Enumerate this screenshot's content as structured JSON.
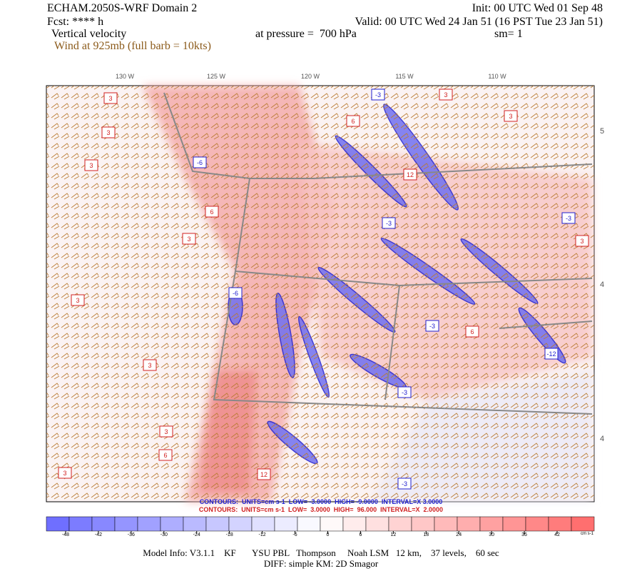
{
  "header": {
    "title": "ECHAM.2050S-WRF Domain 2",
    "init": "Init: 00 UTC Wed 01 Sep 48",
    "forecast": "Fcst: **** h",
    "valid": "Valid: 00 UTC Wed 24 Jan 51 (16 PST Tue 23 Jan 51)",
    "field": "Vertical velocity",
    "pressure": "at pressure =  700 hPa",
    "smoothing": "sm= 1",
    "wind": "Wind at 925mb (full barb = 10kts)"
  },
  "map": {
    "lon_labels": [
      "130 W",
      "125 W",
      "120 W",
      "115 W",
      "110 W"
    ],
    "lat_labels": [
      "5",
      "4",
      "4"
    ],
    "contour_labels": [
      "-3",
      "3",
      "3",
      "6",
      "3",
      "3",
      "-6",
      "3",
      "6",
      "3",
      "-3",
      "3",
      "-3",
      "12",
      "-3",
      "6",
      "-12",
      "3",
      "-3",
      "12",
      "-3",
      "3",
      "6",
      "3",
      "-6",
      "3"
    ]
  },
  "contours": [
    "CONTOURS:  UNITS=cm s-1  LOW= -3.0000  HIGH= -9.0000  INTERVAL=X 3.0000",
    "CONTOURS:  UNITS=cm s-1  LOW=  3.0000  HIGH=  96.000  INTERVAL=X  2.0000"
  ],
  "colorbar": {
    "ticks": [
      -48,
      -42,
      -36,
      -30,
      -24,
      -18,
      -12,
      -6,
      0,
      6,
      12,
      18,
      24,
      30,
      36,
      42
    ],
    "unit": "cm s-1"
  },
  "footer": {
    "model_info": "Model Info: V3.1.1    KF       YSU PBL   Thompson     Noah LSM   12 km,    37 levels,    60 sec",
    "diff": "DIFF: simple KM: 2D Smagor"
  }
}
